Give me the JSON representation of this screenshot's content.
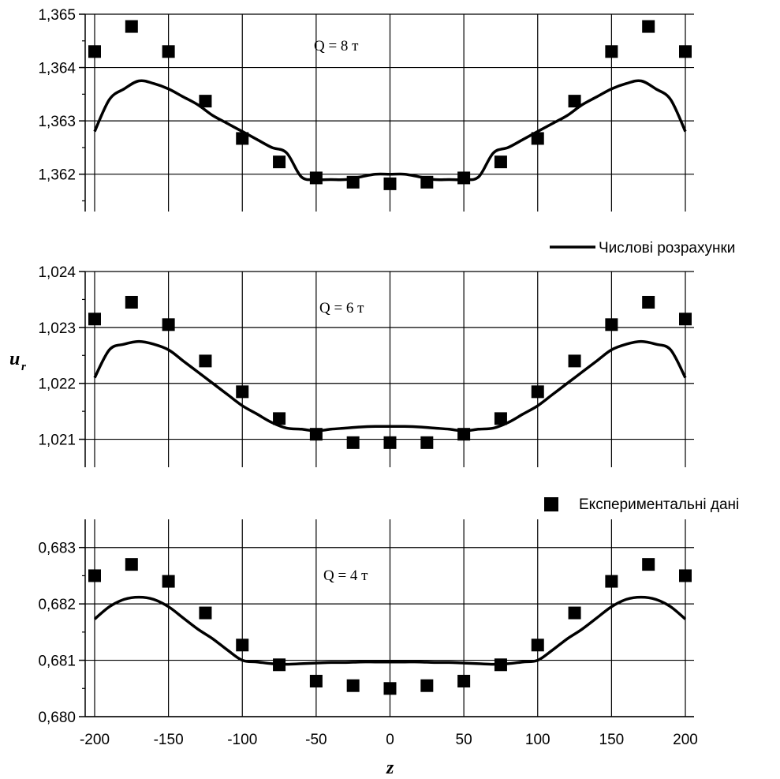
{
  "chart_data": {
    "type": "line",
    "xlabel": "z",
    "ylabel": "u",
    "ylabel_subscript": "r",
    "x_ticks": [
      -200,
      -150,
      -100,
      -50,
      0,
      50,
      100,
      150,
      200
    ],
    "x_tick_labels": [
      "-200",
      "-150",
      "-100",
      "-50",
      "0",
      "50",
      "100",
      "150",
      "200"
    ],
    "xlim": [
      -200,
      200
    ],
    "grid": true,
    "legend": [
      {
        "name": "Числові розрахунки",
        "marker": "line"
      },
      {
        "name": "Експериментальні дані",
        "marker": "square"
      }
    ],
    "panels": [
      {
        "label": "Q = 8 т",
        "ylim": [
          1.3613,
          1.365
        ],
        "yticks": [
          1.362,
          1.363,
          1.364,
          1.365
        ],
        "ytick_labels": [
          "1,362",
          "1,363",
          "1,364",
          "1,365"
        ],
        "numerical": {
          "z": [
            -200,
            -190,
            -180,
            -170,
            -160,
            -150,
            -140,
            -130,
            -120,
            -110,
            -100,
            -90,
            -80,
            -70,
            -60,
            -50,
            -40,
            -30,
            -20,
            -10,
            0,
            10,
            20,
            30,
            40,
            50,
            60,
            70,
            80,
            90,
            100,
            110,
            120,
            130,
            140,
            150,
            160,
            170,
            180,
            190,
            200
          ],
          "u": [
            1.3628,
            1.3634,
            1.3636,
            1.36375,
            1.3637,
            1.3636,
            1.36345,
            1.3633,
            1.3631,
            1.36295,
            1.3628,
            1.36265,
            1.3625,
            1.3624,
            1.36195,
            1.3619,
            1.3619,
            1.3619,
            1.36195,
            1.362,
            1.362,
            1.362,
            1.36195,
            1.3619,
            1.3619,
            1.3619,
            1.36195,
            1.3624,
            1.3625,
            1.36265,
            1.3628,
            1.36295,
            1.3631,
            1.3633,
            1.36345,
            1.3636,
            1.3637,
            1.36375,
            1.3636,
            1.3634,
            1.3628
          ]
        },
        "experimental": {
          "z": [
            -200,
            -175,
            -150,
            -125,
            -100,
            -75,
            -50,
            -25,
            0,
            25,
            50,
            75,
            100,
            125,
            150,
            175,
            200
          ],
          "u": [
            1.3643,
            1.36477,
            1.3643,
            1.36337,
            1.36267,
            1.36223,
            1.36193,
            1.36185,
            1.36182,
            1.36185,
            1.36193,
            1.36223,
            1.36267,
            1.36337,
            1.3643,
            1.36477,
            1.3643
          ]
        }
      },
      {
        "label": "Q = 6 т",
        "ylim": [
          1.0205,
          1.024
        ],
        "yticks": [
          1.021,
          1.022,
          1.023,
          1.024
        ],
        "ytick_labels": [
          "1,021",
          "1,022",
          "1,023",
          "1,024"
        ],
        "numerical": {
          "z": [
            -200,
            -190,
            -180,
            -170,
            -160,
            -150,
            -140,
            -130,
            -120,
            -110,
            -100,
            -90,
            -80,
            -70,
            -60,
            -50,
            -40,
            -30,
            -20,
            -10,
            0,
            10,
            20,
            30,
            40,
            50,
            60,
            70,
            80,
            90,
            100,
            110,
            120,
            130,
            140,
            150,
            160,
            170,
            180,
            190,
            200
          ],
          "u": [
            1.0221,
            1.0226,
            1.0227,
            1.02275,
            1.0227,
            1.0226,
            1.0224,
            1.0222,
            1.022,
            1.0218,
            1.0216,
            1.02145,
            1.0213,
            1.0212,
            1.02118,
            1.02115,
            1.02118,
            1.0212,
            1.02122,
            1.02123,
            1.02123,
            1.02123,
            1.02122,
            1.0212,
            1.02118,
            1.02115,
            1.02118,
            1.0212,
            1.0213,
            1.02145,
            1.0216,
            1.0218,
            1.022,
            1.0222,
            1.0224,
            1.0226,
            1.0227,
            1.02275,
            1.0227,
            1.0226,
            1.0221
          ]
        },
        "experimental": {
          "z": [
            -200,
            -175,
            -150,
            -125,
            -100,
            -75,
            -50,
            -25,
            0,
            25,
            50,
            75,
            100,
            125,
            150,
            175,
            200
          ],
          "u": [
            1.02315,
            1.02345,
            1.02305,
            1.0224,
            1.02185,
            1.02137,
            1.02109,
            1.02094,
            1.02094,
            1.02094,
            1.02109,
            1.02137,
            1.02185,
            1.0224,
            1.02305,
            1.02345,
            1.02315
          ]
        }
      },
      {
        "label": "Q = 4 т",
        "ylim": [
          0.68,
          0.6835
        ],
        "yticks": [
          0.68,
          0.681,
          0.682,
          0.683
        ],
        "ytick_labels": [
          "0,680",
          "0,681",
          "0,682",
          "0,683"
        ],
        "numerical": {
          "z": [
            -200,
            -190,
            -180,
            -170,
            -160,
            -150,
            -140,
            -130,
            -120,
            -110,
            -100,
            -90,
            -80,
            -70,
            -60,
            -50,
            -40,
            -30,
            -20,
            -10,
            0,
            10,
            20,
            30,
            40,
            50,
            60,
            70,
            80,
            90,
            100,
            110,
            120,
            130,
            140,
            150,
            160,
            170,
            180,
            190,
            200
          ],
          "u": [
            0.68173,
            0.68195,
            0.68208,
            0.68212,
            0.68208,
            0.68195,
            0.68175,
            0.68155,
            0.68138,
            0.68118,
            0.681,
            0.68097,
            0.68094,
            0.68093,
            0.68094,
            0.68095,
            0.68096,
            0.68096,
            0.68097,
            0.68097,
            0.68097,
            0.68097,
            0.68097,
            0.68096,
            0.68096,
            0.68095,
            0.68094,
            0.68093,
            0.68094,
            0.68097,
            0.681,
            0.68118,
            0.68138,
            0.68155,
            0.68175,
            0.68195,
            0.68208,
            0.68212,
            0.68208,
            0.68195,
            0.68173
          ]
        },
        "experimental": {
          "z": [
            -200,
            -175,
            -150,
            -125,
            -100,
            -75,
            -50,
            -25,
            0,
            25,
            50,
            75,
            100,
            125,
            150,
            175,
            200
          ],
          "u": [
            0.6825,
            0.6827,
            0.6824,
            0.68184,
            0.68127,
            0.68092,
            0.68063,
            0.68055,
            0.6805,
            0.68055,
            0.68063,
            0.68092,
            0.68127,
            0.68184,
            0.6824,
            0.6827,
            0.6825
          ]
        }
      }
    ]
  }
}
